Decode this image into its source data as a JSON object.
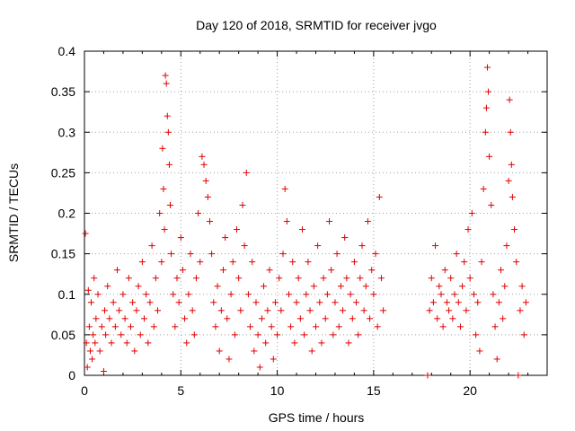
{
  "chart_data": {
    "type": "scatter",
    "title": "Day 120 of 2018, SRMTID for receiver jvgo",
    "xlabel": "GPS time / hours",
    "ylabel": "SRMTID / TECUs",
    "xlim": [
      0,
      24
    ],
    "ylim": [
      0,
      0.4
    ],
    "xticks": [
      0,
      5,
      10,
      15,
      20
    ],
    "xtick_labels": [
      "0",
      "5",
      "10",
      "15",
      "20"
    ],
    "yticks": [
      0,
      0.05,
      0.1,
      0.15,
      0.2,
      0.25,
      0.3,
      0.35,
      0.4
    ],
    "ytick_labels": [
      "0",
      "0.05",
      "0.1",
      "0.15",
      "0.2",
      "0.25",
      "0.3",
      "0.35",
      "0.4"
    ],
    "grid": true,
    "marker": "+",
    "marker_color": "#e00000",
    "series": [
      {
        "name": "SRMTID",
        "points": [
          [
            0.05,
            0.175
          ],
          [
            0.1,
            0.04
          ],
          [
            0.15,
            0.01
          ],
          [
            0.2,
            0.105
          ],
          [
            0.25,
            0.06
          ],
          [
            0.3,
            0.03
          ],
          [
            0.35,
            0.09
          ],
          [
            0.4,
            0.02
          ],
          [
            0.45,
            0.05
          ],
          [
            0.5,
            0.12
          ],
          [
            0.55,
            0.04
          ],
          [
            0.6,
            0.07
          ],
          [
            0.7,
            0.1
          ],
          [
            0.8,
            0.03
          ],
          [
            0.9,
            0.06
          ],
          [
            1.0,
            0.005
          ],
          [
            1.05,
            0.08
          ],
          [
            1.1,
            0.05
          ],
          [
            1.2,
            0.11
          ],
          [
            1.3,
            0.07
          ],
          [
            1.4,
            0.04
          ],
          [
            1.5,
            0.09
          ],
          [
            1.6,
            0.06
          ],
          [
            1.7,
            0.13
          ],
          [
            1.8,
            0.08
          ],
          [
            1.9,
            0.05
          ],
          [
            2.0,
            0.1
          ],
          [
            2.1,
            0.07
          ],
          [
            2.2,
            0.04
          ],
          [
            2.3,
            0.12
          ],
          [
            2.4,
            0.06
          ],
          [
            2.5,
            0.09
          ],
          [
            2.6,
            0.03
          ],
          [
            2.7,
            0.08
          ],
          [
            2.8,
            0.11
          ],
          [
            2.9,
            0.05
          ],
          [
            3.0,
            0.14
          ],
          [
            3.1,
            0.07
          ],
          [
            3.2,
            0.1
          ],
          [
            3.3,
            0.04
          ],
          [
            3.4,
            0.09
          ],
          [
            3.5,
            0.16
          ],
          [
            3.6,
            0.06
          ],
          [
            3.7,
            0.12
          ],
          [
            3.8,
            0.08
          ],
          [
            3.9,
            0.2
          ],
          [
            4.0,
            0.14
          ],
          [
            4.05,
            0.28
          ],
          [
            4.1,
            0.23
          ],
          [
            4.15,
            0.18
          ],
          [
            4.2,
            0.37
          ],
          [
            4.25,
            0.36
          ],
          [
            4.3,
            0.32
          ],
          [
            4.35,
            0.3
          ],
          [
            4.4,
            0.26
          ],
          [
            4.45,
            0.21
          ],
          [
            4.5,
            0.15
          ],
          [
            4.6,
            0.1
          ],
          [
            4.7,
            0.06
          ],
          [
            4.8,
            0.12
          ],
          [
            4.9,
            0.09
          ],
          [
            5.0,
            0.17
          ],
          [
            5.1,
            0.13
          ],
          [
            5.2,
            0.07
          ],
          [
            5.3,
            0.04
          ],
          [
            5.4,
            0.1
          ],
          [
            5.5,
            0.15
          ],
          [
            5.6,
            0.08
          ],
          [
            5.7,
            0.05
          ],
          [
            5.8,
            0.12
          ],
          [
            5.9,
            0.2
          ],
          [
            6.0,
            0.14
          ],
          [
            6.1,
            0.27
          ],
          [
            6.2,
            0.26
          ],
          [
            6.3,
            0.24
          ],
          [
            6.4,
            0.22
          ],
          [
            6.5,
            0.19
          ],
          [
            6.6,
            0.15
          ],
          [
            6.7,
            0.09
          ],
          [
            6.8,
            0.06
          ],
          [
            6.9,
            0.11
          ],
          [
            7.0,
            0.03
          ],
          [
            7.1,
            0.08
          ],
          [
            7.2,
            0.13
          ],
          [
            7.3,
            0.17
          ],
          [
            7.4,
            0.07
          ],
          [
            7.5,
            0.02
          ],
          [
            7.6,
            0.1
          ],
          [
            7.7,
            0.14
          ],
          [
            7.8,
            0.05
          ],
          [
            7.9,
            0.18
          ],
          [
            8.0,
            0.12
          ],
          [
            8.1,
            0.08
          ],
          [
            8.2,
            0.21
          ],
          [
            8.3,
            0.16
          ],
          [
            8.4,
            0.25
          ],
          [
            8.5,
            0.1
          ],
          [
            8.6,
            0.06
          ],
          [
            8.7,
            0.14
          ],
          [
            8.8,
            0.03
          ],
          [
            8.9,
            0.09
          ],
          [
            9.0,
            0.05
          ],
          [
            9.1,
            0.01
          ],
          [
            9.2,
            0.07
          ],
          [
            9.3,
            0.11
          ],
          [
            9.4,
            0.04
          ],
          [
            9.5,
            0.08
          ],
          [
            9.6,
            0.13
          ],
          [
            9.7,
            0.06
          ],
          [
            9.8,
            0.02
          ],
          [
            9.9,
            0.09
          ],
          [
            10.0,
            0.05
          ],
          [
            10.1,
            0.12
          ],
          [
            10.2,
            0.08
          ],
          [
            10.3,
            0.15
          ],
          [
            10.4,
            0.23
          ],
          [
            10.5,
            0.19
          ],
          [
            10.6,
            0.1
          ],
          [
            10.7,
            0.06
          ],
          [
            10.8,
            0.14
          ],
          [
            10.9,
            0.04
          ],
          [
            11.0,
            0.09
          ],
          [
            11.1,
            0.12
          ],
          [
            11.2,
            0.07
          ],
          [
            11.3,
            0.18
          ],
          [
            11.4,
            0.05
          ],
          [
            11.5,
            0.1
          ],
          [
            11.6,
            0.14
          ],
          [
            11.7,
            0.08
          ],
          [
            11.8,
            0.03
          ],
          [
            11.9,
            0.11
          ],
          [
            12.0,
            0.06
          ],
          [
            12.1,
            0.16
          ],
          [
            12.2,
            0.09
          ],
          [
            12.3,
            0.04
          ],
          [
            12.4,
            0.12
          ],
          [
            12.5,
            0.07
          ],
          [
            12.6,
            0.1
          ],
          [
            12.7,
            0.19
          ],
          [
            12.8,
            0.13
          ],
          [
            12.9,
            0.05
          ],
          [
            13.0,
            0.09
          ],
          [
            13.1,
            0.15
          ],
          [
            13.2,
            0.06
          ],
          [
            13.3,
            0.11
          ],
          [
            13.4,
            0.08
          ],
          [
            13.5,
            0.17
          ],
          [
            13.6,
            0.12
          ],
          [
            13.7,
            0.04
          ],
          [
            13.8,
            0.1
          ],
          [
            13.9,
            0.07
          ],
          [
            14.0,
            0.14
          ],
          [
            14.1,
            0.09
          ],
          [
            14.2,
            0.05
          ],
          [
            14.3,
            0.12
          ],
          [
            14.4,
            0.16
          ],
          [
            14.5,
            0.08
          ],
          [
            14.6,
            0.11
          ],
          [
            14.7,
            0.19
          ],
          [
            14.8,
            0.07
          ],
          [
            14.9,
            0.13
          ],
          [
            15.0,
            0.1
          ],
          [
            15.1,
            0.15
          ],
          [
            15.2,
            0.06
          ],
          [
            15.3,
            0.22
          ],
          [
            15.4,
            0.12
          ],
          [
            15.5,
            0.08
          ],
          [
            17.8,
            0.0
          ],
          [
            17.9,
            0.08
          ],
          [
            18.0,
            0.12
          ],
          [
            18.1,
            0.09
          ],
          [
            18.2,
            0.16
          ],
          [
            18.3,
            0.07
          ],
          [
            18.4,
            0.11
          ],
          [
            18.5,
            0.1
          ],
          [
            18.6,
            0.06
          ],
          [
            18.7,
            0.13
          ],
          [
            18.8,
            0.09
          ],
          [
            18.9,
            0.08
          ],
          [
            19.0,
            0.12
          ],
          [
            19.1,
            0.07
          ],
          [
            19.2,
            0.1
          ],
          [
            19.3,
            0.15
          ],
          [
            19.4,
            0.09
          ],
          [
            19.5,
            0.06
          ],
          [
            19.6,
            0.11
          ],
          [
            19.7,
            0.14
          ],
          [
            19.8,
            0.08
          ],
          [
            19.9,
            0.18
          ],
          [
            20.0,
            0.12
          ],
          [
            20.1,
            0.2
          ],
          [
            20.2,
            0.1
          ],
          [
            20.3,
            0.05
          ],
          [
            20.4,
            0.09
          ],
          [
            20.5,
            0.03
          ],
          [
            20.6,
            0.14
          ],
          [
            20.7,
            0.23
          ],
          [
            20.8,
            0.3
          ],
          [
            20.85,
            0.33
          ],
          [
            20.9,
            0.38
          ],
          [
            20.95,
            0.35
          ],
          [
            21.0,
            0.27
          ],
          [
            21.1,
            0.21
          ],
          [
            21.2,
            0.1
          ],
          [
            21.3,
            0.06
          ],
          [
            21.4,
            0.02
          ],
          [
            21.5,
            0.09
          ],
          [
            21.6,
            0.13
          ],
          [
            21.7,
            0.07
          ],
          [
            21.8,
            0.11
          ],
          [
            21.9,
            0.16
          ],
          [
            22.0,
            0.24
          ],
          [
            22.05,
            0.34
          ],
          [
            22.1,
            0.3
          ],
          [
            22.15,
            0.26
          ],
          [
            22.2,
            0.22
          ],
          [
            22.3,
            0.18
          ],
          [
            22.4,
            0.14
          ],
          [
            22.5,
            0.0
          ],
          [
            22.6,
            0.08
          ],
          [
            22.7,
            0.11
          ],
          [
            22.8,
            0.05
          ],
          [
            22.9,
            0.09
          ]
        ]
      }
    ]
  }
}
